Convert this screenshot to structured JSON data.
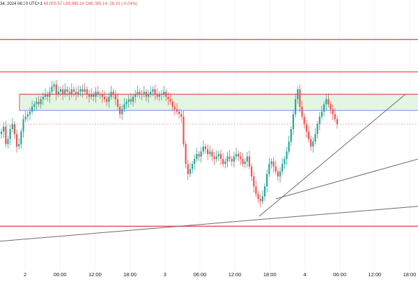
{
  "legend": {
    "datetime": "34, 2024 06:30 UTC+1",
    "o_text": "69,005.57",
    "l_text": "L68,985.14",
    "c_text": "C68,985.14",
    "change_text": "-28.10 (-0.04%)"
  },
  "colors": {
    "up": "#26a69a",
    "down": "#ef5350",
    "resistance_line": "#e84b53",
    "box_fill": "#e3f5e4",
    "box_border_top": "#e84b53",
    "box_border_bottom": "#7f8ef0",
    "trendline": "#6b6b6b",
    "price_dots": "#f09a9a",
    "grid": "#f0f3fa"
  },
  "chart_data": {
    "type": "candlestick",
    "x_ticks": [
      "2",
      "06:00",
      "12:00",
      "18:00",
      "3",
      "06:00",
      "12:00",
      "18:00",
      "4",
      "06:00",
      "12:00",
      "18:00"
    ],
    "x_range": [
      "2 00:00",
      "4 21:00"
    ],
    "interval": "30m",
    "y_range_relative": [
      0,
      1
    ],
    "close_series_relative": [
      0.55,
      0.57,
      0.5,
      0.52,
      0.56,
      0.58,
      0.54,
      0.49,
      0.5,
      0.55,
      0.6,
      0.61,
      0.62,
      0.63,
      0.65,
      0.66,
      0.67,
      0.66,
      0.68,
      0.69,
      0.7,
      0.69,
      0.71,
      0.73,
      0.74,
      0.7,
      0.71,
      0.72,
      0.7,
      0.72,
      0.71,
      0.7,
      0.72,
      0.71,
      0.7,
      0.71,
      0.72,
      0.71,
      0.72,
      0.7,
      0.69,
      0.7,
      0.69,
      0.71,
      0.7,
      0.7,
      0.69,
      0.68,
      0.67,
      0.69,
      0.71,
      0.7,
      0.68,
      0.65,
      0.62,
      0.64,
      0.66,
      0.67,
      0.68,
      0.67,
      0.69,
      0.7,
      0.71,
      0.7,
      0.7,
      0.71,
      0.69,
      0.7,
      0.71,
      0.72,
      0.7,
      0.69,
      0.7,
      0.7,
      0.71,
      0.69,
      0.68,
      0.67,
      0.65,
      0.64,
      0.63,
      0.62,
      0.61,
      0.5,
      0.42,
      0.38,
      0.4,
      0.42,
      0.44,
      0.46,
      0.45,
      0.47,
      0.49,
      0.48,
      0.46,
      0.47,
      0.45,
      0.44,
      0.45,
      0.46,
      0.44,
      0.42,
      0.43,
      0.45,
      0.44,
      0.43,
      0.45,
      0.46,
      0.45,
      0.44,
      0.42,
      0.43,
      0.45,
      0.41,
      0.37,
      0.33,
      0.3,
      0.28,
      0.27,
      0.29,
      0.33,
      0.38,
      0.42,
      0.43,
      0.41,
      0.39,
      0.37,
      0.39,
      0.42,
      0.44,
      0.47,
      0.51,
      0.56,
      0.62,
      0.68,
      0.72,
      0.65,
      0.61,
      0.58,
      0.55,
      0.52,
      0.49,
      0.51,
      0.54,
      0.58,
      0.61,
      0.63,
      0.66,
      0.68,
      0.66,
      0.64,
      0.62,
      0.6,
      0.58
    ],
    "price_levels": [
      {
        "kind": "horizontal",
        "value": 0.92
      },
      {
        "kind": "horizontal",
        "value": 0.79
      },
      {
        "kind": "zone",
        "low": 0.635,
        "high": 0.7
      },
      {
        "kind": "horizontal",
        "value": 0.17
      }
    ],
    "trendlines": [
      {
        "from": {
          "t": 0.0,
          "v": 0.11
        },
        "to": {
          "t": 1.0,
          "v": 0.25
        }
      },
      {
        "from": {
          "t": 0.62,
          "v": 0.21
        },
        "to": {
          "t": 0.97,
          "v": 0.7
        }
      },
      {
        "from": {
          "t": 0.66,
          "v": 0.28
        },
        "to": {
          "t": 1.0,
          "v": 0.44
        }
      }
    ],
    "last_price_relative": 0.58
  }
}
